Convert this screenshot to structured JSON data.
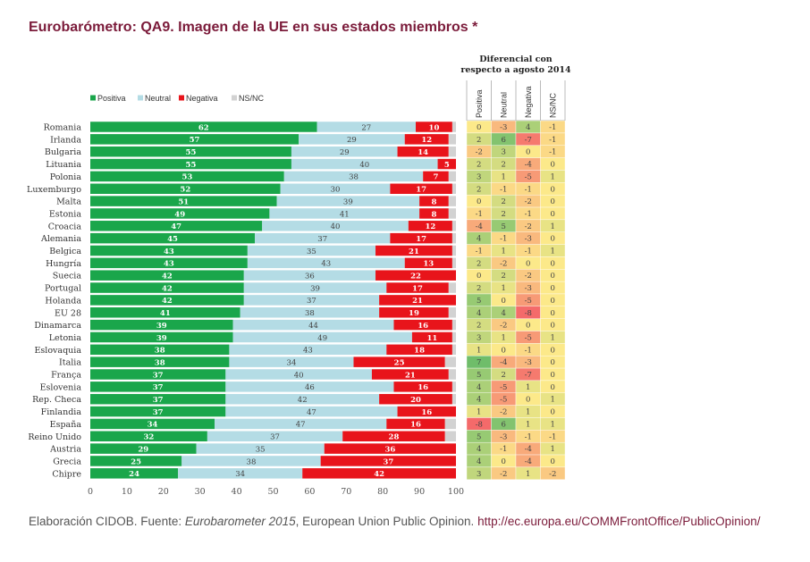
{
  "title": "Eurobarómetro: QA9. Imagen de la UE en sus estados miembros *",
  "source": {
    "prefix": "Elaboración CIDOB. Fuente: ",
    "italic": "Eurobarometer 2015",
    "suffix": ", European Union Public Opinion. ",
    "link": "http://ec.europa.eu/COMMFrontOffice/PublicOpinion/"
  },
  "colors": {
    "positiva": "#1aa64b",
    "neutral": "#b4dce5",
    "negativa": "#e8141b",
    "nsnc": "#d2d2d2",
    "title": "#7b1b3a"
  },
  "chart_data": {
    "type": "bar",
    "orientation": "horizontal",
    "stacked": true,
    "xlim": [
      0,
      100
    ],
    "xticks": [
      0,
      10,
      20,
      30,
      40,
      50,
      60,
      70,
      80,
      90,
      100
    ],
    "legend": [
      "Positiva",
      "Neutral",
      "Negativa",
      "NS/NC"
    ],
    "categories": [
      "Romania",
      "Irlanda",
      "Bulgaria",
      "Lituania",
      "Polonia",
      "Luxemburgo",
      "Malta",
      "Estonia",
      "Croacia",
      "Alemania",
      "Belgica",
      "Hungría",
      "Suecia",
      "Portugal",
      "Holanda",
      "EU 28",
      "Dinamarca",
      "Letonia",
      "Eslovaquia",
      "Italia",
      "França",
      "Eslovenia",
      "Rep. Checa",
      "Finlandia",
      "España",
      "Reino Unido",
      "Austria",
      "Grecia",
      "Chipre"
    ],
    "series": [
      {
        "name": "Positiva",
        "values": [
          62,
          57,
          55,
          55,
          53,
          52,
          51,
          49,
          47,
          45,
          43,
          43,
          42,
          42,
          42,
          41,
          39,
          39,
          38,
          38,
          37,
          37,
          37,
          37,
          34,
          32,
          29,
          25,
          24
        ]
      },
      {
        "name": "Neutral",
        "values": [
          27,
          29,
          29,
          40,
          38,
          30,
          39,
          41,
          40,
          37,
          35,
          43,
          36,
          39,
          37,
          38,
          44,
          49,
          43,
          34,
          40,
          46,
          42,
          47,
          47,
          37,
          35,
          38,
          34
        ]
      },
      {
        "name": "Negativa",
        "values": [
          10,
          12,
          14,
          5,
          7,
          17,
          8,
          8,
          12,
          17,
          21,
          13,
          22,
          17,
          21,
          19,
          16,
          11,
          18,
          25,
          21,
          16,
          20,
          16,
          16,
          28,
          36,
          37,
          42
        ]
      },
      {
        "name": "NS/NC",
        "values": [
          1,
          2,
          2,
          0,
          2,
          1,
          2,
          2,
          1,
          1,
          1,
          1,
          0,
          2,
          0,
          2,
          1,
          1,
          1,
          3,
          2,
          1,
          1,
          0,
          3,
          3,
          0,
          0,
          0
        ]
      }
    ],
    "diff_title": [
      "Diferencial con",
      "respecto a agosto 2014"
    ],
    "diff_columns": [
      "Positiva",
      "Neutral",
      "Negativa",
      "NS/NC"
    ],
    "diff_values": [
      [
        0,
        -3,
        4,
        -1
      ],
      [
        2,
        6,
        -7,
        -1
      ],
      [
        -2,
        3,
        0,
        -1
      ],
      [
        2,
        2,
        -4,
        0
      ],
      [
        3,
        1,
        -5,
        1
      ],
      [
        2,
        -1,
        -1,
        0
      ],
      [
        0,
        2,
        -2,
        0
      ],
      [
        -1,
        2,
        -1,
        0
      ],
      [
        -4,
        5,
        -2,
        1
      ],
      [
        4,
        -1,
        -3,
        0
      ],
      [
        -1,
        1,
        -1,
        1
      ],
      [
        2,
        -2,
        0,
        0
      ],
      [
        0,
        2,
        -2,
        0
      ],
      [
        2,
        1,
        -3,
        0
      ],
      [
        5,
        0,
        -5,
        0
      ],
      [
        4,
        4,
        -8,
        0
      ],
      [
        2,
        -2,
        0,
        0
      ],
      [
        3,
        1,
        -5,
        1
      ],
      [
        1,
        0,
        -1,
        0
      ],
      [
        7,
        -4,
        -3,
        0
      ],
      [
        5,
        2,
        -7,
        0
      ],
      [
        4,
        -5,
        1,
        0
      ],
      [
        4,
        -5,
        0,
        1
      ],
      [
        1,
        -2,
        1,
        0
      ],
      [
        -8,
        6,
        1,
        1
      ],
      [
        5,
        -3,
        -1,
        -1
      ],
      [
        4,
        -1,
        -4,
        1
      ],
      [
        4,
        0,
        -4,
        0
      ],
      [
        3,
        -2,
        1,
        -2
      ]
    ]
  }
}
